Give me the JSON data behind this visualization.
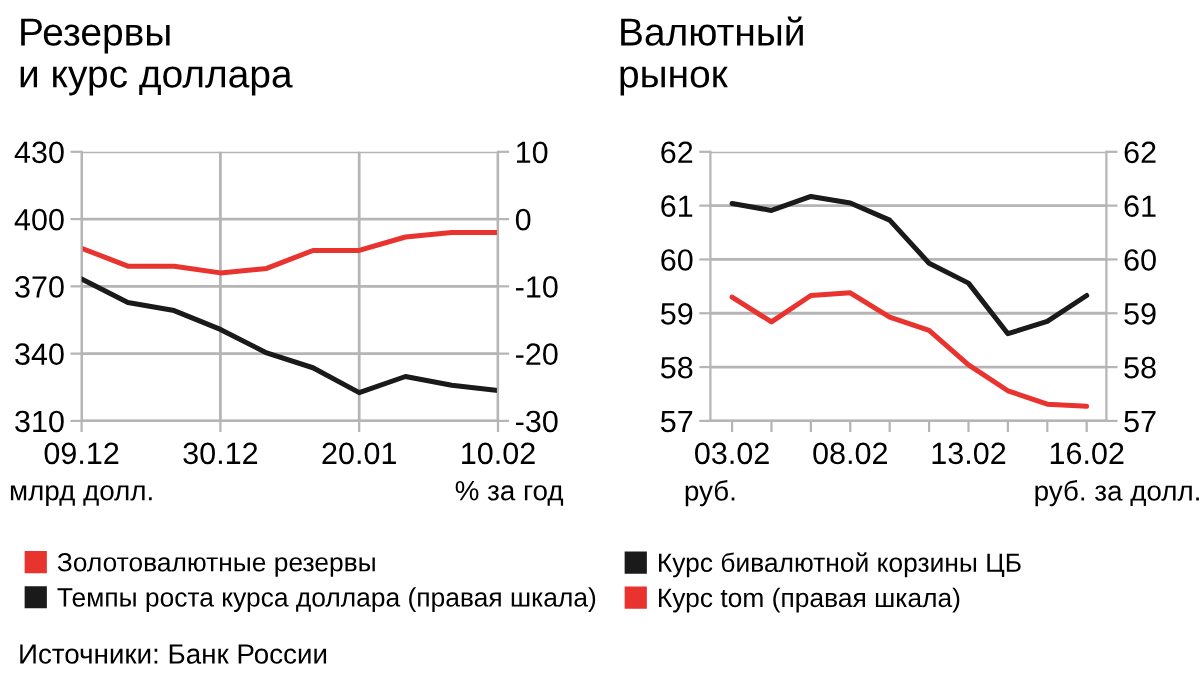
{
  "chart_data": [
    {
      "type": "line",
      "title": "Резервы\nи курс доллара",
      "xlabel": null,
      "ylabel": "млрд долл.",
      "y2label": "% за год",
      "categories": [
        "09.12",
        null,
        null,
        "30.12",
        null,
        null,
        "20.01",
        null,
        null,
        "10.02"
      ],
      "series": [
        {
          "name": "Золотовалютные резервы",
          "color": "#e8332e",
          "values": [
            387,
            379,
            379,
            376,
            378,
            386,
            386,
            392,
            394,
            394
          ]
        },
        {
          "name": "Темпы роста курса доллара (правая шкала)",
          "color": "#1a1a1a",
          "axis": "y2",
          "values": [
            -8.9,
            -12.4,
            -13.6,
            -16.4,
            -19.9,
            -22.1,
            -25.8,
            -23.4,
            -24.7,
            -25.5
          ]
        }
      ],
      "ylim": [
        310,
        430
      ],
      "yticks": [
        310,
        340,
        370,
        400,
        430
      ],
      "y2lim": [
        -30,
        10
      ],
      "y2ticks": [
        -30,
        -20,
        -10,
        0,
        10
      ],
      "grid": true,
      "legend": "bottom",
      "annotations": [
        "Источники: Банк России"
      ]
    },
    {
      "type": "line",
      "title": "Валютный\nрынок",
      "ylabel": "руб.",
      "y2label": "руб. за долл.",
      "categories": [
        "03.02",
        null,
        null,
        "08.02",
        null,
        null,
        "13.02",
        null,
        null,
        "16.02"
      ],
      "series": [
        {
          "name": "Курс бивалютной корзины ЦБ",
          "color": "#1a1a1a",
          "values": [
            61.04,
            60.91,
            61.17,
            61.05,
            60.73,
            59.93,
            59.56,
            58.62,
            58.85,
            59.33
          ]
        },
        {
          "name": "Курс tom (правая шкала)",
          "color": "#e8332e",
          "axis": "y2",
          "values": [
            59.3,
            58.84,
            59.33,
            59.38,
            58.93,
            58.68,
            58.04,
            57.56,
            57.31,
            57.27
          ]
        }
      ],
      "ylim": [
        57,
        62
      ],
      "yticks": [
        57,
        58,
        59,
        60,
        61,
        62
      ],
      "y2lim": [
        57,
        62
      ],
      "y2ticks": [
        57,
        58,
        59,
        60,
        61,
        62
      ],
      "grid": "y",
      "legend": "bottom"
    }
  ]
}
